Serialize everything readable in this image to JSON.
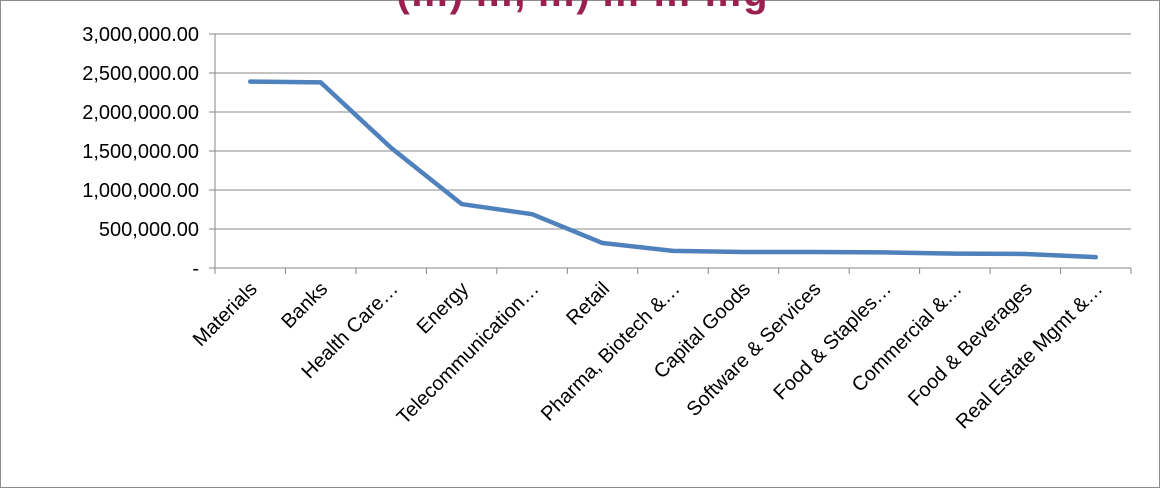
{
  "chart_data": {
    "type": "line",
    "title": "(…) …, …) … … …g",
    "categories": [
      "Materials",
      "Banks",
      "Health Care…",
      "Energy",
      "Telecommunication…",
      "Retail",
      "Pharma, Biotech &…",
      "Capital Goods",
      "Software & Services",
      "Food & Staples…",
      "Commercial &…",
      "Food & Beverages",
      "Real Estate Mgmt &…"
    ],
    "series": [
      {
        "values": [
          2390000,
          2380000,
          1540000,
          820000,
          690000,
          320000,
          220000,
          205000,
          205000,
          200000,
          185000,
          180000,
          140000
        ],
        "color": "#4f81bd"
      }
    ],
    "y_ticks": [
      {
        "value": 3000000,
        "label": "3,000,000.00"
      },
      {
        "value": 2500000,
        "label": "2,500,000.00"
      },
      {
        "value": 2000000,
        "label": "2,000,000.00"
      },
      {
        "value": 1500000,
        "label": "1,500,000.00"
      },
      {
        "value": 1000000,
        "label": "1,000,000.00"
      },
      {
        "value": 500000,
        "label": "500,000.00"
      },
      {
        "value": 0,
        "label": "-"
      }
    ],
    "ylim": [
      0,
      3000000
    ],
    "xlabel": "",
    "ylabel": "",
    "grid": true,
    "legend": "none",
    "colors": {
      "gridline": "#878787",
      "axis": "#878787",
      "title": "#9b2050"
    }
  }
}
